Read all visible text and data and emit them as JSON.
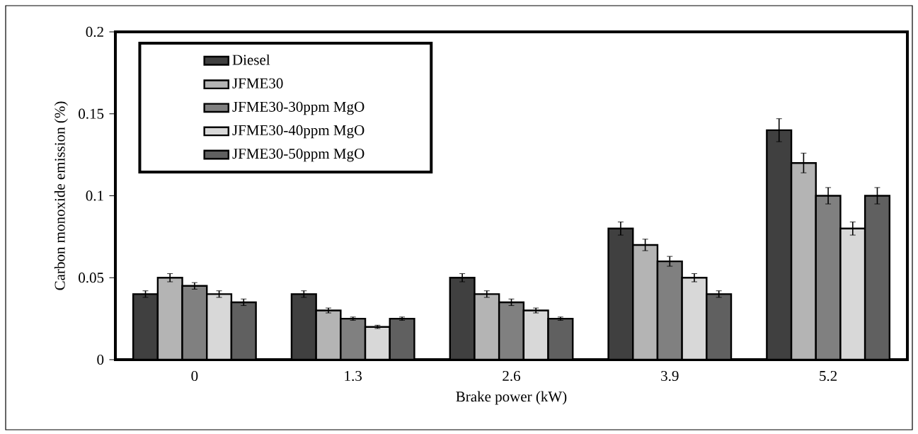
{
  "chart_data": {
    "type": "bar",
    "xlabel": "Brake power (kW)",
    "ylabel": "Carbon monoxide emission (%)",
    "categories": [
      "0",
      "1.3",
      "2.6",
      "3.9",
      "5.2"
    ],
    "ylim": [
      0,
      0.2
    ],
    "yticks": [
      0,
      0.05,
      0.1,
      0.15,
      0.2
    ],
    "legend": "top left",
    "series": [
      {
        "name": "Diesel",
        "color": "#404040",
        "values": [
          0.04,
          0.04,
          0.05,
          0.08,
          0.14
        ],
        "errors": [
          0.002,
          0.002,
          0.0025,
          0.004,
          0.007
        ]
      },
      {
        "name": "JFME30",
        "color": "#b4b4b4",
        "values": [
          0.05,
          0.03,
          0.04,
          0.07,
          0.12
        ],
        "errors": [
          0.0025,
          0.0015,
          0.002,
          0.0035,
          0.006
        ]
      },
      {
        "name": "JFME30-30ppm MgO",
        "color": "#808080",
        "values": [
          0.045,
          0.025,
          0.035,
          0.06,
          0.1
        ],
        "errors": [
          0.002,
          0.001,
          0.002,
          0.003,
          0.005
        ]
      },
      {
        "name": "JFME30-40ppm MgO",
        "color": "#d8d8d8",
        "values": [
          0.04,
          0.02,
          0.03,
          0.05,
          0.08
        ],
        "errors": [
          0.002,
          0.001,
          0.0015,
          0.0025,
          0.004
        ]
      },
      {
        "name": "JFME30-50ppm MgO",
        "color": "#606060",
        "values": [
          0.035,
          0.025,
          0.025,
          0.04,
          0.1
        ],
        "errors": [
          0.002,
          0.001,
          0.001,
          0.002,
          0.005
        ]
      }
    ]
  }
}
